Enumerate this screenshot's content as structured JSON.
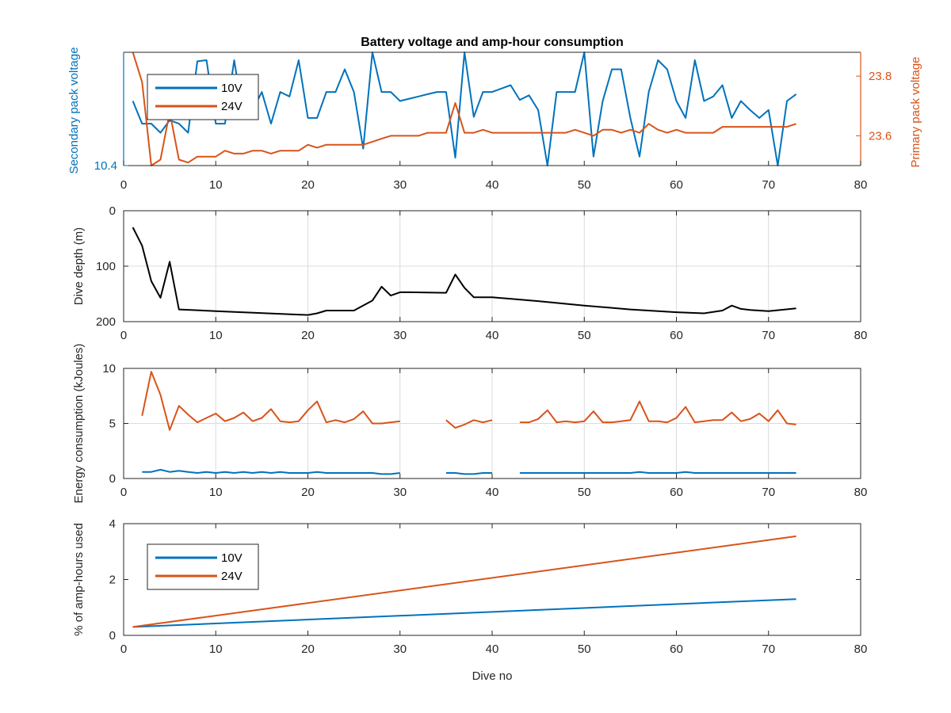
{
  "chart_data": [
    {
      "type": "line",
      "title": "Battery voltage and amp-hour consumption",
      "ylabel_left": "Secondary pack voltage",
      "ylabel_right": "Primary pack voltage",
      "xlim": [
        0,
        80
      ],
      "xticks": [
        0,
        10,
        20,
        30,
        40,
        50,
        60,
        70,
        80
      ],
      "ylim_left": [
        10.4,
        10.5
      ],
      "yticks_left": [
        10.4
      ],
      "ylim_right": [
        23.5,
        23.88
      ],
      "yticks_right": [
        23.6,
        23.8
      ],
      "grid": false,
      "legend_placement": "top-left",
      "colors": {
        "10V": "#0072BD",
        "24V": "#D95319",
        "left_axis": "#0072BD",
        "right_axis": "#D95319"
      },
      "series": [
        {
          "name": "10V",
          "axis": "left",
          "x": [
            1,
            2,
            3,
            4,
            5,
            6,
            7,
            8,
            9,
            10,
            11,
            12,
            13,
            14,
            15,
            16,
            17,
            18,
            19,
            20,
            21,
            22,
            23,
            24,
            25,
            26,
            27,
            28,
            29,
            30,
            31,
            32,
            33,
            34,
            35,
            36,
            37,
            38,
            39,
            40,
            41,
            42,
            43,
            44,
            45,
            46,
            47,
            48,
            49,
            50,
            51,
            52,
            53,
            54,
            55,
            56,
            57,
            58,
            59,
            60,
            61,
            62,
            63,
            64,
            65,
            66,
            67,
            68,
            69,
            70,
            71,
            72,
            73
          ],
          "values": [
            10.457,
            10.437,
            10.437,
            10.429,
            10.44,
            10.437,
            10.429,
            10.492,
            10.493,
            10.437,
            10.437,
            10.493,
            10.442,
            10.449,
            10.465,
            10.437,
            10.465,
            10.461,
            10.493,
            10.442,
            10.442,
            10.465,
            10.465,
            10.485,
            10.465,
            10.415,
            10.5,
            10.465,
            10.465,
            10.457,
            10.459,
            10.461,
            10.463,
            10.465,
            10.465,
            10.407,
            10.5,
            10.443,
            10.465,
            10.465,
            10.468,
            10.471,
            10.458,
            10.462,
            10.449,
            10.4,
            10.465,
            10.465,
            10.465,
            10.5,
            10.408,
            10.457,
            10.485,
            10.485,
            10.442,
            10.408,
            10.465,
            10.493,
            10.485,
            10.457,
            10.442,
            10.493,
            10.457,
            10.461,
            10.471,
            10.442,
            10.457,
            10.449,
            10.442,
            10.449,
            10.4,
            10.457,
            10.463
          ]
        },
        {
          "name": "24V",
          "axis": "right",
          "x": [
            1,
            2,
            3,
            4,
            5,
            6,
            7,
            8,
            9,
            10,
            11,
            12,
            13,
            14,
            15,
            16,
            17,
            18,
            19,
            20,
            21,
            22,
            23,
            24,
            25,
            26,
            27,
            28,
            29,
            30,
            31,
            32,
            33,
            34,
            35,
            36,
            37,
            38,
            39,
            40,
            41,
            42,
            43,
            44,
            45,
            46,
            47,
            48,
            49,
            50,
            51,
            52,
            53,
            54,
            55,
            56,
            57,
            58,
            59,
            60,
            61,
            62,
            63,
            64,
            65,
            66,
            67,
            68,
            69,
            70,
            71,
            72,
            73
          ],
          "values": [
            23.88,
            23.78,
            23.5,
            23.52,
            23.68,
            23.52,
            23.51,
            23.53,
            23.53,
            23.53,
            23.55,
            23.54,
            23.54,
            23.55,
            23.55,
            23.54,
            23.55,
            23.55,
            23.55,
            23.57,
            23.56,
            23.57,
            23.57,
            23.57,
            23.57,
            23.57,
            23.58,
            23.59,
            23.6,
            23.6,
            23.6,
            23.6,
            23.61,
            23.61,
            23.61,
            23.71,
            23.61,
            23.61,
            23.62,
            23.61,
            23.61,
            23.61,
            23.61,
            23.61,
            23.61,
            23.61,
            23.61,
            23.61,
            23.62,
            23.61,
            23.6,
            23.62,
            23.62,
            23.61,
            23.62,
            23.61,
            23.64,
            23.62,
            23.61,
            23.62,
            23.61,
            23.61,
            23.61,
            23.61,
            23.63,
            23.63,
            23.63,
            23.63,
            23.63,
            23.63,
            23.63,
            23.63,
            23.64
          ]
        }
      ]
    },
    {
      "type": "line",
      "ylabel": "Dive depth (m)",
      "xlim": [
        0,
        80
      ],
      "xticks": [
        0,
        10,
        20,
        30,
        40,
        50,
        60,
        70,
        80
      ],
      "ylim": [
        0,
        200
      ],
      "yticks": [
        0,
        100,
        200
      ],
      "y_reversed": true,
      "grid": true,
      "colors": {
        "depth": "#000000"
      },
      "series": [
        {
          "x": [
            1,
            2,
            3,
            4,
            5,
            6,
            10,
            20,
            21,
            22,
            25,
            27,
            28,
            29,
            30,
            31,
            35,
            36,
            37,
            38,
            40,
            45,
            50,
            55,
            60,
            63,
            65,
            66,
            67,
            68,
            70,
            73
          ],
          "values": [
            30,
            63,
            127,
            157,
            92,
            178,
            181,
            188,
            185,
            180,
            180,
            162,
            137,
            153,
            147,
            147,
            148,
            115,
            139,
            156,
            156,
            163,
            171,
            178,
            183,
            185,
            180,
            171,
            177,
            179,
            181,
            176
          ]
        }
      ]
    },
    {
      "type": "line",
      "ylabel": "Energy consumption (kJoules)",
      "xlim": [
        0,
        80
      ],
      "xticks": [
        0,
        10,
        20,
        30,
        40,
        50,
        60,
        70,
        80
      ],
      "ylim": [
        0,
        10
      ],
      "yticks": [
        0,
        5,
        10
      ],
      "grid": true,
      "colors": {
        "24V": "#D95319",
        "10V": "#0072BD"
      },
      "series": [
        {
          "name": "24V",
          "x": [
            2,
            3,
            4,
            5,
            6,
            7,
            8,
            9,
            10,
            11,
            12,
            13,
            14,
            15,
            16,
            17,
            18,
            19,
            20,
            21,
            22,
            23,
            24,
            25,
            26,
            27,
            28,
            29,
            30,
            31,
            32,
            33,
            34,
            35,
            36,
            37,
            38,
            39,
            40,
            41,
            42,
            43,
            44,
            45,
            46,
            47,
            48,
            49,
            50,
            51,
            52,
            53,
            54,
            55,
            56,
            57,
            58,
            59,
            60,
            61,
            62,
            63,
            64,
            65,
            66,
            67,
            68,
            69,
            70,
            71,
            72,
            73
          ],
          "values": [
            5.7,
            9.7,
            7.6,
            4.4,
            6.6,
            5.8,
            5.1,
            5.5,
            5.9,
            5.2,
            5.5,
            6.0,
            5.2,
            5.5,
            6.3,
            5.2,
            5.1,
            5.2,
            6.2,
            7.0,
            5.1,
            5.3,
            5.1,
            5.4,
            6.1,
            5.0,
            5.0,
            5.1,
            5.2,
            null,
            null,
            null,
            null,
            5.3,
            4.6,
            4.9,
            5.3,
            5.1,
            5.3,
            null,
            null,
            5.1,
            5.1,
            5.4,
            6.2,
            5.1,
            5.2,
            5.1,
            5.2,
            6.1,
            5.1,
            5.1,
            5.2,
            5.3,
            7.0,
            5.2,
            5.2,
            5.1,
            5.5,
            6.5,
            5.1,
            5.2,
            5.3,
            5.3,
            6.0,
            5.2,
            5.4,
            5.9,
            5.2,
            6.2,
            5.0,
            4.9
          ]
        },
        {
          "name": "10V",
          "x": [
            2,
            3,
            4,
            5,
            6,
            7,
            8,
            9,
            10,
            11,
            12,
            13,
            14,
            15,
            16,
            17,
            18,
            19,
            20,
            21,
            22,
            23,
            24,
            25,
            26,
            27,
            28,
            29,
            30,
            31,
            32,
            33,
            34,
            35,
            36,
            37,
            38,
            39,
            40,
            41,
            42,
            43,
            44,
            45,
            46,
            47,
            48,
            49,
            50,
            51,
            52,
            53,
            54,
            55,
            56,
            57,
            58,
            59,
            60,
            61,
            62,
            63,
            64,
            65,
            66,
            67,
            68,
            69,
            70,
            71,
            72,
            73
          ],
          "values": [
            0.6,
            0.6,
            0.8,
            0.6,
            0.7,
            0.6,
            0.5,
            0.6,
            0.5,
            0.6,
            0.5,
            0.6,
            0.5,
            0.6,
            0.5,
            0.6,
            0.5,
            0.5,
            0.5,
            0.6,
            0.5,
            0.5,
            0.5,
            0.5,
            0.5,
            0.5,
            0.4,
            0.4,
            0.5,
            null,
            null,
            null,
            null,
            0.5,
            0.5,
            0.4,
            0.4,
            0.5,
            0.5,
            null,
            null,
            0.5,
            0.5,
            0.5,
            0.5,
            0.5,
            0.5,
            0.5,
            0.5,
            0.5,
            0.5,
            0.5,
            0.5,
            0.5,
            0.6,
            0.5,
            0.5,
            0.5,
            0.5,
            0.6,
            0.5,
            0.5,
            0.5,
            0.5,
            0.5,
            0.5,
            0.5,
            0.5,
            0.5,
            0.5,
            0.5,
            0.5
          ]
        }
      ]
    },
    {
      "type": "line",
      "ylabel": "% of amp-hours used",
      "xlabel": "Dive no",
      "xlim": [
        0,
        80
      ],
      "xticks": [
        0,
        10,
        20,
        30,
        40,
        50,
        60,
        70,
        80
      ],
      "ylim": [
        0,
        4
      ],
      "yticks": [
        0,
        2,
        4
      ],
      "grid": false,
      "legend_placement": "top-left",
      "colors": {
        "10V": "#0072BD",
        "24V": "#D95319"
      },
      "series": [
        {
          "name": "10V",
          "x": [
            1,
            73
          ],
          "values": [
            0.3,
            1.3
          ]
        },
        {
          "name": "24V",
          "x": [
            1,
            73
          ],
          "values": [
            0.3,
            3.55
          ]
        }
      ]
    }
  ]
}
